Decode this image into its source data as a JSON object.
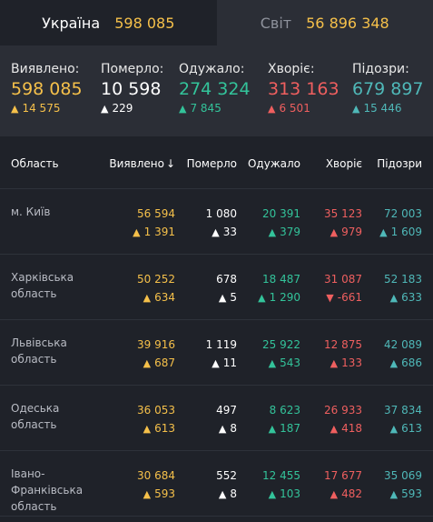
{
  "tabs": [
    {
      "name": "Україна",
      "value": "598 085"
    },
    {
      "name": "Світ",
      "value": "56 896 348"
    }
  ],
  "summary": [
    {
      "label": "Виявлено:",
      "value": "598 085",
      "delta": "14 575",
      "color": "yellow"
    },
    {
      "label": "Померло:",
      "value": "10 598",
      "delta": "229",
      "color": "white"
    },
    {
      "label": "Одужало:",
      "value": "274 324",
      "delta": "7 845",
      "color": "green"
    },
    {
      "label": "Хворіє:",
      "value": "313 163",
      "delta": "6 501",
      "color": "red"
    },
    {
      "label": "Підозри:",
      "value": "679 897",
      "delta": "15 446",
      "color": "teal"
    }
  ],
  "table": {
    "headers": [
      "Область",
      "Виявлено",
      "Померло",
      "Одужало",
      "Хворіє",
      "Підозри"
    ],
    "sort_indicator": "↓",
    "rows": [
      {
        "name": "м. Київ",
        "detected": "56 594",
        "detected_d": "1 391",
        "died": "1 080",
        "died_d": "33",
        "recovered": "20 391",
        "recovered_d": "379",
        "sick": "35 123",
        "sick_d": "979",
        "sick_dir": "up",
        "suspect": "72 003",
        "suspect_d": "1 609"
      },
      {
        "name": "Харківська область",
        "detected": "50 252",
        "detected_d": "634",
        "died": "678",
        "died_d": "5",
        "recovered": "18 487",
        "recovered_d": "1 290",
        "sick": "31 087",
        "sick_d": "-661",
        "sick_dir": "down",
        "suspect": "52 183",
        "suspect_d": "633"
      },
      {
        "name": "Львівська область",
        "detected": "39 916",
        "detected_d": "687",
        "died": "1 119",
        "died_d": "11",
        "recovered": "25 922",
        "recovered_d": "543",
        "sick": "12 875",
        "sick_d": "133",
        "sick_dir": "up",
        "suspect": "42 089",
        "suspect_d": "686"
      },
      {
        "name": "Одеська область",
        "detected": "36 053",
        "detected_d": "613",
        "died": "497",
        "died_d": "8",
        "recovered": "8 623",
        "recovered_d": "187",
        "sick": "26 933",
        "sick_d": "418",
        "sick_dir": "up",
        "suspect": "37 834",
        "suspect_d": "613"
      },
      {
        "name": "Івано-Франківська область",
        "detected": "30 684",
        "detected_d": "593",
        "died": "552",
        "died_d": "8",
        "recovered": "12 455",
        "recovered_d": "103",
        "sick": "17 677",
        "sick_d": "482",
        "sick_dir": "up",
        "suspect": "35 069",
        "suspect_d": "593"
      }
    ]
  },
  "colors": {
    "yellow": "#f5c04a",
    "green": "#33c39a",
    "red": "#ef5f5f",
    "teal": "#4fb8b8",
    "background": "#1f2229"
  }
}
